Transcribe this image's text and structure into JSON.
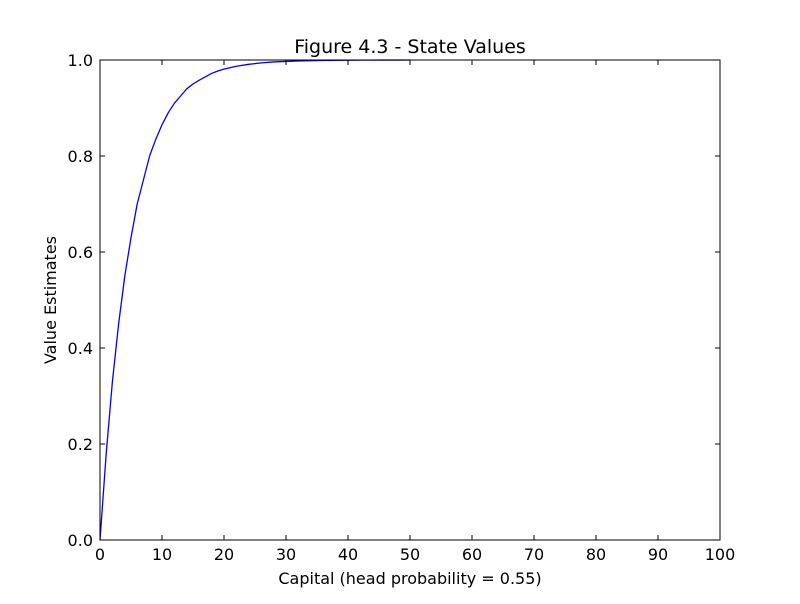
{
  "chart_data": {
    "type": "line",
    "title": "Figure 4.3 - State Values",
    "xlabel": "Capital (head probability = 0.55)",
    "ylabel": "Value Estimates",
    "xlim": [
      0,
      100
    ],
    "ylim": [
      0.0,
      1.0
    ],
    "xticks": [
      "0",
      "10",
      "20",
      "30",
      "40",
      "50",
      "60",
      "70",
      "80",
      "90",
      "100"
    ],
    "yticks": [
      "0.0",
      "0.2",
      "0.4",
      "0.6",
      "0.8",
      "1.0"
    ],
    "grid": false,
    "legend": "none",
    "line_color": "#0000ff",
    "series": [
      {
        "x": [
          0,
          1,
          2,
          3,
          4,
          5,
          6,
          7,
          8,
          9,
          10,
          11,
          12,
          13,
          14,
          15,
          16,
          17,
          18,
          19,
          20,
          22,
          24,
          26,
          28,
          30,
          32,
          34,
          36,
          38,
          40,
          42,
          44,
          46,
          48,
          50
        ],
        "values": [
          0.0,
          0.18,
          0.33,
          0.45,
          0.55,
          0.63,
          0.7,
          0.75,
          0.8,
          0.835,
          0.865,
          0.89,
          0.91,
          0.925,
          0.94,
          0.95,
          0.958,
          0.965,
          0.972,
          0.977,
          0.981,
          0.987,
          0.991,
          0.994,
          0.996,
          0.997,
          0.998,
          0.9985,
          0.999,
          0.9993,
          0.9995,
          0.9997,
          0.9998,
          0.9999,
          0.9999,
          1.0
        ]
      }
    ]
  }
}
